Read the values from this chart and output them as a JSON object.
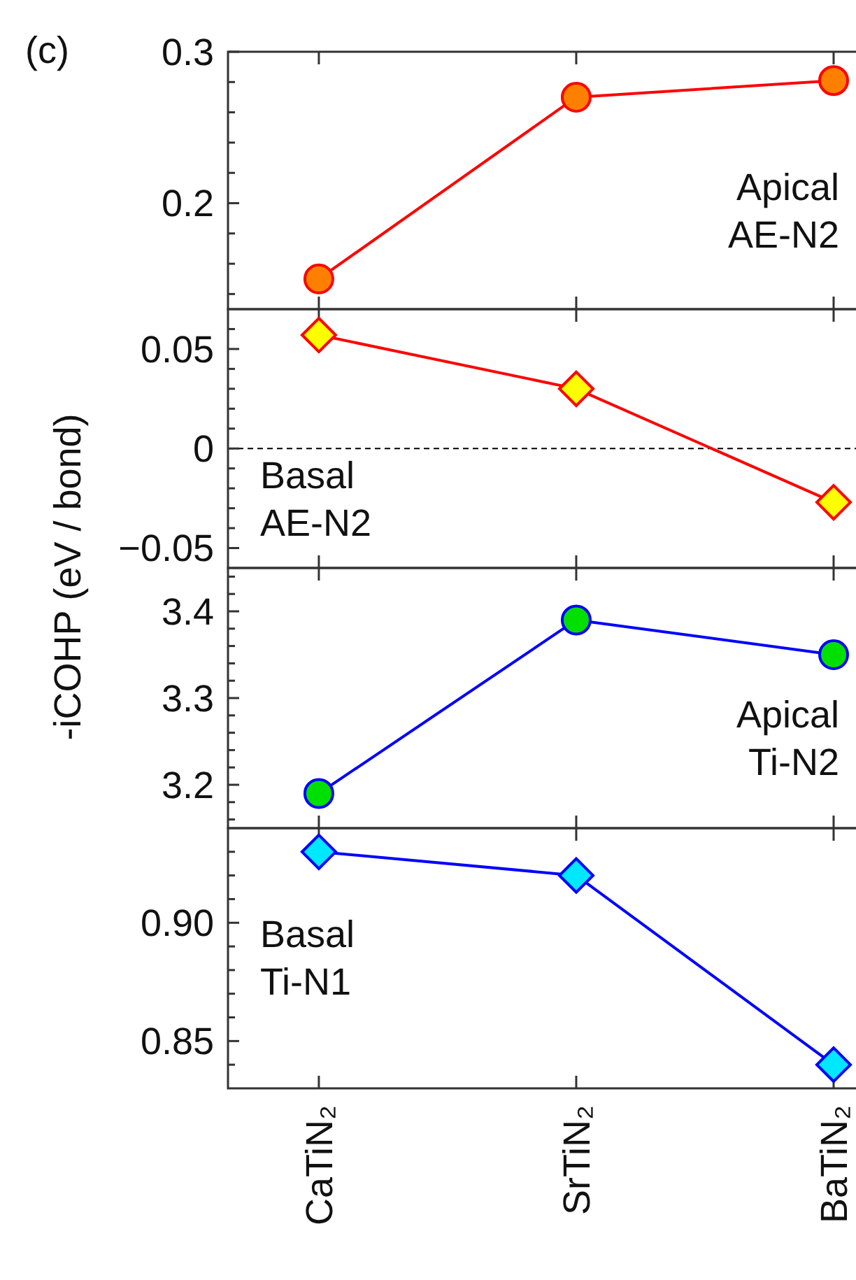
{
  "chart_data": [
    {
      "type": "line",
      "title": "(c)",
      "ylabel": "-iCOHP (eV / bond)",
      "tick_labels": "y",
      "marker": "circle",
      "line_style": "solid",
      "ylim": [
        0.13,
        0.3
      ],
      "yticks": [
        {
          "value": 0.14,
          "label": null
        },
        {
          "value": 0.16,
          "label": null
        },
        {
          "value": 0.18,
          "label": null
        },
        {
          "value": 0.2,
          "label": "0.2"
        },
        {
          "value": 0.22,
          "label": null
        },
        {
          "value": 0.24,
          "label": null
        },
        {
          "value": 0.26,
          "label": null
        },
        {
          "value": 0.28,
          "label": null
        },
        {
          "value": 0.3,
          "label": "0.3"
        }
      ],
      "annotations": [
        "Apical AE-N2"
      ],
      "series": [
        {
          "color": "#ff0000",
          "colors": [
            "#ff8000",
            "#ff8000",
            "#ff8000"
          ],
          "values": [
            0.15,
            0.27,
            0.281
          ]
        }
      ]
    },
    {
      "type": "line",
      "tick_labels": "y",
      "marker": "diamond",
      "line_style": "solid",
      "ylim": [
        -0.06,
        0.07
      ],
      "yticks": [
        {
          "value": -0.04,
          "label": null
        },
        {
          "value": -0.05,
          "label": "−0.05"
        },
        {
          "value": -0.03,
          "label": null
        },
        {
          "value": -0.02,
          "label": null
        },
        {
          "value": -0.01,
          "label": null
        },
        0,
        {
          "value": 0.01,
          "label": null
        },
        {
          "value": 0.02,
          "label": null
        },
        {
          "value": 0.03,
          "label": null
        },
        {
          "value": 0.04,
          "label": null
        },
        {
          "value": 0.05,
          "label": "0.05"
        },
        {
          "value": 0.06,
          "label": null
        }
      ],
      "ref_lines": [
        {
          "axis": "y",
          "value": 0,
          "color": "#000000",
          "line_style": "dashed"
        }
      ],
      "annotations": [
        "Basal AE-N2"
      ],
      "series": [
        {
          "color": "#ff0000",
          "colors": [
            "#ffff00",
            "#ffff00",
            "#ffff00"
          ],
          "values": [
            0.057,
            0.03,
            -0.027
          ]
        }
      ]
    },
    {
      "type": "line",
      "tick_labels": "y",
      "marker": "circle",
      "line_style": "solid",
      "ylim": [
        3.15,
        3.45
      ],
      "yticks": [
        {
          "value": 3.16,
          "label": null
        },
        {
          "value": 3.18,
          "label": null
        },
        {
          "value": 3.2,
          "label": "3.2"
        },
        {
          "value": 3.22,
          "label": null
        },
        {
          "value": 3.24,
          "label": null
        },
        {
          "value": 3.26,
          "label": null
        },
        {
          "value": 3.28,
          "label": null
        },
        {
          "value": 3.3,
          "label": "3.3"
        },
        {
          "value": 3.32,
          "label": null
        },
        {
          "value": 3.34,
          "label": null
        },
        {
          "value": 3.36,
          "label": null
        },
        {
          "value": 3.38,
          "label": null
        },
        {
          "value": 3.4,
          "label": "3.4"
        },
        {
          "value": 3.42,
          "label": null
        },
        {
          "value": 3.44,
          "label": null
        }
      ],
      "annotations": [
        "Apical Ti-N2"
      ],
      "series": [
        {
          "color": "#0000ff",
          "colors": [
            "#00e000",
            "#00e000",
            "#00e000"
          ],
          "values": [
            3.19,
            3.39,
            3.35
          ]
        }
      ]
    },
    {
      "type": "line",
      "categories": [
        "CaTiN₂",
        "SrTiN₂",
        "BaTiN₂"
      ],
      "marker": "diamond",
      "line_style": "solid",
      "ylim": [
        0.83,
        0.94
      ],
      "yticks": [
        {
          "value": 0.84,
          "label": null
        },
        {
          "value": 0.85,
          "label": "0.85"
        },
        {
          "value": 0.86,
          "label": null
        },
        {
          "value": 0.87,
          "label": null
        },
        {
          "value": 0.88,
          "label": null
        },
        {
          "value": 0.89,
          "label": null
        },
        {
          "value": 0.9,
          "label": "0.90"
        },
        {
          "value": 0.91,
          "label": null
        },
        {
          "value": 0.92,
          "label": null
        },
        {
          "value": 0.93,
          "label": null
        }
      ],
      "annotations": [
        "Basal Ti-N1"
      ],
      "series": [
        {
          "color": "#0000ff",
          "colors": [
            "#00e8ff",
            "#00e8ff",
            "#00e8ff"
          ],
          "values": [
            0.93,
            0.92,
            0.84
          ]
        }
      ]
    }
  ]
}
